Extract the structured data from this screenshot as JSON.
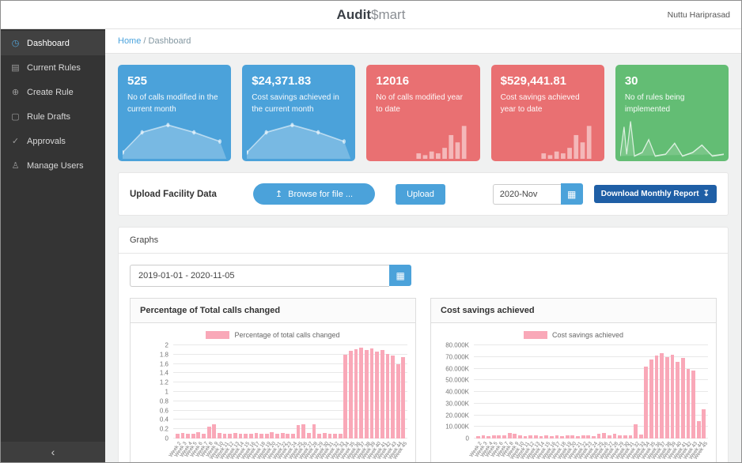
{
  "header": {
    "brand_primary": "Audit",
    "brand_secondary": "$mart",
    "user_name": "Nuttu Hariprasad"
  },
  "sidebar": {
    "items": [
      {
        "label": "Dashboard",
        "icon": "◷"
      },
      {
        "label": "Current Rules",
        "icon": "▤"
      },
      {
        "label": "Create Rule",
        "icon": "⊕"
      },
      {
        "label": "Rule Drafts",
        "icon": "▢"
      },
      {
        "label": "Approvals",
        "icon": "✓"
      },
      {
        "label": "Manage Users",
        "icon": "♙"
      }
    ],
    "collapse_icon": "‹"
  },
  "breadcrumb": {
    "home": "Home",
    "separator": "/",
    "current": "Dashboard"
  },
  "stat_cards": [
    {
      "value": "525",
      "label": "No of calls modified in the current month",
      "color": "#4ba2da",
      "chart_kind": "area"
    },
    {
      "value": "$24,371.83",
      "label": "Cost savings achieved in the current month",
      "color": "#4ba2da",
      "chart_kind": "area"
    },
    {
      "value": "12016",
      "label": "No of calls modified year to date",
      "color": "#e97072",
      "chart_kind": "bar"
    },
    {
      "value": "$529,441.81",
      "label": "Cost savings achieved year to date",
      "color": "#e97072",
      "chart_kind": "bar"
    },
    {
      "value": "30",
      "label": "No of rules being implemented",
      "color": "#63bd74",
      "chart_kind": "line"
    }
  ],
  "upload": {
    "label": "Upload Facility Data",
    "browse_icon": "↥",
    "browse_label": "Browse for file ...",
    "upload_label": "Upload",
    "month_value": "2020-Nov",
    "calendar_icon": "▦",
    "download_label": "Download Monthly Report",
    "download_icon": "↧"
  },
  "graphs": {
    "title": "Graphs",
    "date_range": "2019-01-01 - 2020-11-05",
    "calendar_icon": "▦"
  },
  "chart_data": [
    {
      "type": "bar",
      "title": "Percentage of Total calls changed",
      "legend_label": "Percentage of total calls changed",
      "bar_color": "#f9a8b8",
      "grid": true,
      "legend_position": "top",
      "ylim": [
        0,
        2
      ],
      "ytick_values": [
        0,
        0.2,
        0.4,
        0.6,
        0.8,
        1,
        1.2,
        1.4,
        1.6,
        1.8,
        2
      ],
      "ytick_labels": [
        "0",
        "0.2",
        "0.4",
        "0.6",
        "0.8",
        "1",
        "1.2",
        "1.4",
        "1.6",
        "1.8",
        "2"
      ],
      "categories": [
        "Week 2",
        "Week 3",
        "Week 4",
        "Week 5",
        "Week 6",
        "Week 7",
        "Week 8",
        "Week 9",
        "Week 10",
        "Week 11",
        "Week 12",
        "Week 13",
        "Week 14",
        "Week 15",
        "Week 16",
        "Week 17",
        "Week 18",
        "Week 19",
        "Week 20",
        "Week 21",
        "Week 22",
        "Week 23",
        "Week 24",
        "Week 25",
        "Week 26",
        "Week 27",
        "Week 28",
        "Week 29",
        "Week 30",
        "Week 31",
        "Week 32",
        "Week 33",
        "Week 34",
        "Week 35",
        "Week 36",
        "Week 37",
        "Week 38",
        "Week 39",
        "Week 40",
        "Week 41",
        "Week 42",
        "Week 43",
        "Week 44",
        "Week 45"
      ],
      "values": [
        0.1,
        0.12,
        0.1,
        0.11,
        0.13,
        0.1,
        0.25,
        0.3,
        0.12,
        0.1,
        0.11,
        0.12,
        0.1,
        0.11,
        0.1,
        0.12,
        0.1,
        0.11,
        0.13,
        0.1,
        0.12,
        0.1,
        0.11,
        0.28,
        0.3,
        0.12,
        0.3,
        0.11,
        0.12,
        0.1,
        0.11,
        0.1,
        1.8,
        1.88,
        1.92,
        1.95,
        1.9,
        1.93,
        1.87,
        1.9,
        1.82,
        1.78,
        1.6,
        1.75
      ]
    },
    {
      "type": "bar",
      "title": "Cost savings achieved",
      "legend_label": "Cost savings achieved",
      "bar_color": "#f9a8b8",
      "grid": true,
      "legend_position": "top",
      "ylim": [
        0,
        80000
      ],
      "ytick_values": [
        0,
        10000,
        20000,
        30000,
        40000,
        50000,
        60000,
        70000,
        80000
      ],
      "ytick_labels": [
        "0",
        "10.000K",
        "20.000K",
        "30.000K",
        "40.000K",
        "50.000K",
        "60.000K",
        "70.000K",
        "80.000K"
      ],
      "categories": [
        "Week 2",
        "Week 3",
        "Week 4",
        "Week 5",
        "Week 6",
        "Week 7",
        "Week 8",
        "Week 9",
        "Week 10",
        "Week 11",
        "Week 12",
        "Week 13",
        "Week 14",
        "Week 15",
        "Week 16",
        "Week 17",
        "Week 18",
        "Week 19",
        "Week 20",
        "Week 21",
        "Week 22",
        "Week 23",
        "Week 24",
        "Week 25",
        "Week 26",
        "Week 27",
        "Week 28",
        "Week 29",
        "Week 30",
        "Week 31",
        "Week 32",
        "Week 33",
        "Week 34",
        "Week 35",
        "Week 36",
        "Week 37",
        "Week 38",
        "Week 39",
        "Week 40",
        "Week 41",
        "Week 42",
        "Week 43",
        "Week 44",
        "Week 45"
      ],
      "values": [
        2000,
        2500,
        2200,
        3000,
        2400,
        2600,
        5000,
        4200,
        2500,
        2300,
        2400,
        2500,
        2200,
        2400,
        2300,
        2500,
        2200,
        2400,
        2600,
        2300,
        2500,
        2400,
        2300,
        4000,
        4500,
        2600,
        4200,
        2500,
        2600,
        3000,
        12000,
        3200,
        62000,
        68000,
        71000,
        73000,
        70000,
        72000,
        66000,
        69000,
        60000,
        58000,
        15000,
        25000
      ]
    }
  ]
}
